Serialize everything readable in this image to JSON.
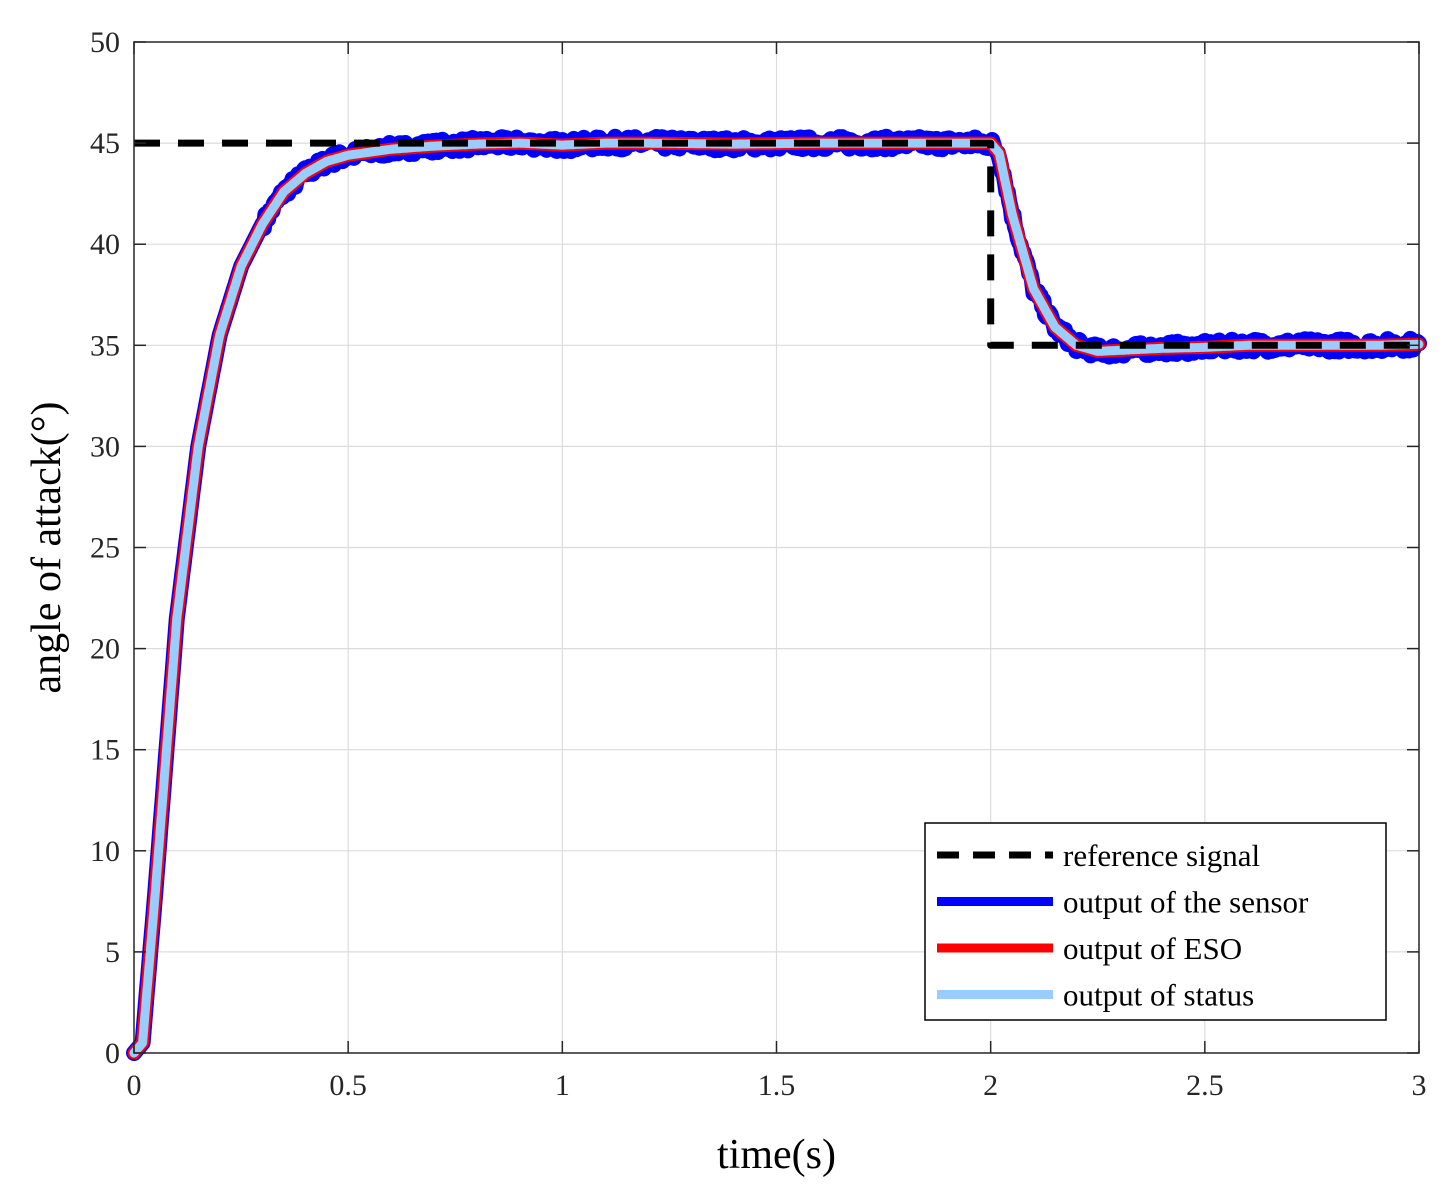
{
  "chart_data": {
    "type": "line",
    "xlabel": "time(s)",
    "ylabel": "angle of attack(°)",
    "xlim": [
      0,
      3
    ],
    "ylim": [
      0,
      50
    ],
    "xticks": [
      0,
      0.5,
      1,
      1.5,
      2,
      2.5,
      3
    ],
    "xtick_labels": [
      "0",
      "0.5",
      "1",
      "1.5",
      "2",
      "2.5",
      "3"
    ],
    "yticks": [
      0,
      5,
      10,
      15,
      20,
      25,
      30,
      35,
      40,
      45,
      50
    ],
    "ytick_labels": [
      "0",
      "5",
      "10",
      "15",
      "20",
      "25",
      "30",
      "35",
      "40",
      "45",
      "50"
    ],
    "grid": true,
    "legend_position": "bottom-right",
    "series": [
      {
        "name": "reference signal",
        "color": "#000000",
        "style": "dashed",
        "x": [
          0,
          2,
          2,
          3
        ],
        "y": [
          45,
          45,
          35,
          35
        ]
      },
      {
        "name": "output of the sensor",
        "color": "#0000ff",
        "style": "solid-noisy",
        "noise_band": 0.45,
        "x": [
          0,
          0.02,
          0.05,
          0.1,
          0.15,
          0.2,
          0.25,
          0.3,
          0.35,
          0.4,
          0.45,
          0.5,
          0.6,
          0.7,
          0.8,
          0.9,
          1.0,
          1.1,
          1.2,
          1.4,
          1.6,
          1.8,
          2.0,
          2.02,
          2.05,
          2.1,
          2.15,
          2.2,
          2.25,
          2.3,
          2.4,
          2.5,
          2.6,
          2.7,
          2.8,
          2.9,
          3.0
        ],
        "y": [
          0,
          0.5,
          8,
          21.5,
          30,
          35.5,
          38.9,
          41,
          42.6,
          43.5,
          44.1,
          44.4,
          44.7,
          44.85,
          44.95,
          45.0,
          44.9,
          45.0,
          45.0,
          44.95,
          45.0,
          45.0,
          45.0,
          44.5,
          41.5,
          37.8,
          35.9,
          35.0,
          34.7,
          34.75,
          34.85,
          34.9,
          35.0,
          35.0,
          35.0,
          35.0,
          35.05
        ]
      },
      {
        "name": "output of ESO",
        "color": "#ff0000",
        "style": "solid",
        "x": [
          0,
          0.02,
          0.05,
          0.1,
          0.15,
          0.2,
          0.25,
          0.3,
          0.35,
          0.4,
          0.45,
          0.5,
          0.6,
          0.7,
          0.8,
          0.9,
          1.0,
          1.1,
          1.2,
          1.4,
          1.6,
          1.8,
          2.0,
          2.02,
          2.05,
          2.1,
          2.15,
          2.2,
          2.25,
          2.3,
          2.4,
          2.5,
          2.6,
          2.7,
          2.8,
          2.9,
          3.0
        ],
        "y": [
          0,
          0.5,
          8,
          21.5,
          30,
          35.5,
          38.9,
          41,
          42.6,
          43.5,
          44.1,
          44.4,
          44.7,
          44.85,
          44.95,
          45.0,
          44.9,
          45.0,
          45.0,
          44.95,
          45.0,
          45.0,
          45.0,
          44.5,
          41.5,
          37.8,
          35.9,
          35.0,
          34.7,
          34.75,
          34.85,
          34.9,
          35.0,
          35.0,
          35.0,
          35.0,
          35.05
        ]
      },
      {
        "name": "output of status",
        "color": "#99ccff",
        "style": "solid",
        "x": [
          0,
          0.02,
          0.05,
          0.1,
          0.15,
          0.2,
          0.25,
          0.3,
          0.35,
          0.4,
          0.45,
          0.5,
          0.6,
          0.7,
          0.8,
          0.9,
          1.0,
          1.1,
          1.2,
          1.4,
          1.6,
          1.8,
          2.0,
          2.02,
          2.05,
          2.1,
          2.15,
          2.2,
          2.25,
          2.3,
          2.4,
          2.5,
          2.6,
          2.7,
          2.8,
          2.9,
          3.0
        ],
        "y": [
          0,
          0.5,
          8,
          21.5,
          30,
          35.5,
          38.9,
          41,
          42.6,
          43.5,
          44.1,
          44.4,
          44.7,
          44.85,
          44.95,
          45.0,
          44.9,
          45.0,
          45.0,
          44.95,
          45.0,
          45.0,
          45.0,
          44.5,
          41.5,
          37.8,
          35.9,
          35.0,
          34.7,
          34.75,
          34.85,
          34.9,
          35.0,
          35.0,
          35.0,
          35.0,
          35.05
        ]
      }
    ]
  }
}
